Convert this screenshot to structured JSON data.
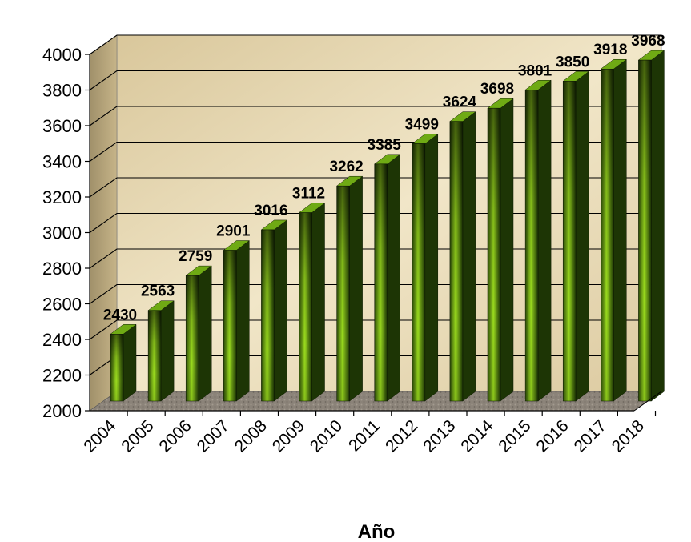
{
  "chart_data": {
    "type": "bar",
    "categories": [
      "2004",
      "2005",
      "2006",
      "2007",
      "2008",
      "2009",
      "2010",
      "2011",
      "2012",
      "2013",
      "2014",
      "2015",
      "2016",
      "2017",
      "2018"
    ],
    "values": [
      2430,
      2563,
      2759,
      2901,
      3016,
      3112,
      3262,
      3385,
      3499,
      3624,
      3698,
      3801,
      3850,
      3918,
      3968
    ],
    "data_labels": [
      "2430",
      "2563",
      "2759",
      "2901",
      "3016",
      "3112",
      "3262",
      "3385",
      "3499",
      "3624",
      "3698",
      "3801",
      "3850",
      "3918",
      "3968"
    ],
    "xlabel": "Año",
    "ylabel": "",
    "ylim": [
      2000,
      4000
    ],
    "yticks": [
      "2000",
      "2200",
      "2400",
      "2600",
      "2800",
      "3000",
      "3200",
      "3400",
      "3600",
      "3800",
      "4000"
    ],
    "grid": true,
    "style": "3d",
    "colors": {
      "bar_light": "#8fd21a",
      "bar_dark": "#1e3a06",
      "wall": "#e9dcb8",
      "floor": "#8a8278"
    }
  }
}
